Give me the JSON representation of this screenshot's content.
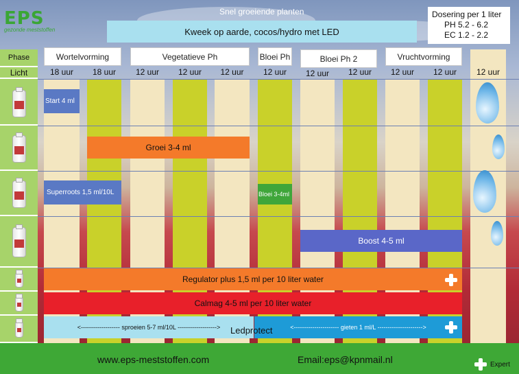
{
  "subtitle": "Snel groeiende planten",
  "brand": {
    "logo": "EPS",
    "tagline": "gezonde meststoffen"
  },
  "banner": "Kweek op aarde, cocos/hydro  met LED",
  "dosage": {
    "title": "Dosering per 1 liter",
    "ph": "PH 5.2 - 6.2",
    "ec": "EC 1.2 - 2.2"
  },
  "left_labels": {
    "phase": "Phase",
    "light": "Licht"
  },
  "phases": [
    "Wortelvorming",
    "Vegetatieve Ph",
    "Bloei Ph",
    "Bloei Ph 2",
    "Vruchtvorming"
  ],
  "hours": [
    "18 uur",
    "18 uur",
    "12 uur",
    "12 uur",
    "12 uur",
    "12 uur",
    "12 uur",
    "12 uur",
    "12 uur",
    "12 uur",
    "12 uur",
    "12 uur"
  ],
  "products": {
    "start": "Start 4 ml",
    "groei": "Groei 3-4 ml",
    "superroots": "Superroots 1,5 ml/10L",
    "bloei": "Bloei 3-4ml",
    "boost": "Boost 4-5 ml",
    "regulator": "Regulator plus 1,5 ml per 10 liter water",
    "calmag": "Calmag 4-5 ml per 10 liter water",
    "ledprotect": "Ledprotect",
    "sproeien": "<------------------- sproeien 5-7 ml/10L ------------------->",
    "gieten": "<---------------------- gieten 1 ml/L ---------------------->"
  },
  "footer": {
    "website": "www.eps-meststoffen.com",
    "email": "Email:eps@kpnmail.nl",
    "expert": "Expert"
  },
  "colors": {
    "cream": "#f3e6c0",
    "lime": "#c9d12a",
    "banner": "#a9e0ef",
    "orange": "#f47a2a",
    "red": "#e8202a",
    "blue": "#5a67c8",
    "cyan": "#1e9bd7",
    "footer": "#3ea836",
    "left": "#a7d36a"
  }
}
